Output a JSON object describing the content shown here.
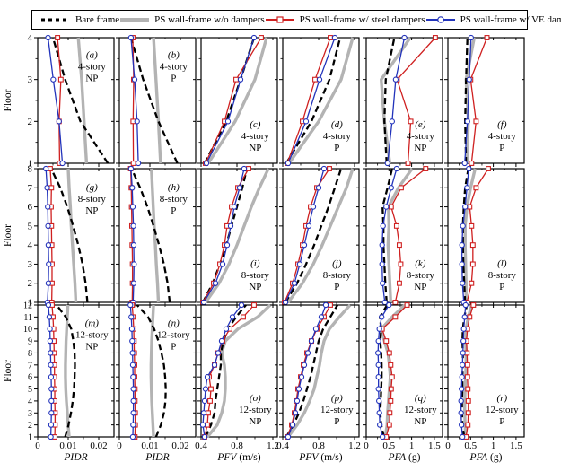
{
  "legend": {
    "items": [
      {
        "label": "Bare frame",
        "style": "bare"
      },
      {
        "label": "PS wall-frame w/o dampers",
        "style": "wo"
      },
      {
        "label": "PS wall-frame w/ steel dampers",
        "style": "steel"
      },
      {
        "label": "PS wall-frame w/ VE dampers",
        "style": "ve"
      }
    ]
  },
  "series_styles": {
    "bare": {
      "color": "#000000",
      "width": 2.3,
      "dash": "7,4"
    },
    "wo": {
      "color": "#b3b3b3",
      "width": 3.4
    },
    "steel": {
      "color": "#cf2020",
      "width": 1.3,
      "marker": "square"
    },
    "ve": {
      "color": "#2233bb",
      "width": 1.3,
      "marker": "circle"
    }
  },
  "y_axis": {
    "label": "Floor",
    "rows": [
      {
        "floors": 4,
        "tick_labels": [
          "1",
          "2",
          "3",
          "4"
        ]
      },
      {
        "floors": 8,
        "tick_labels": [
          "1",
          "2",
          "3",
          "4",
          "5",
          "6",
          "7",
          "8"
        ]
      },
      {
        "floors": 12,
        "tick_labels": [
          "1",
          "2",
          "3",
          "4",
          "5",
          "6",
          "7",
          "8",
          "9",
          "10",
          "11",
          "12"
        ]
      }
    ]
  },
  "chart_data": {
    "type": "line",
    "axes": {
      "PIDR": {
        "min": 0,
        "max": 0.025,
        "ticks": [
          0,
          0.01,
          0.02
        ],
        "minors": [
          0.005,
          0.015
        ],
        "tick_labels": [
          "0",
          "0.01",
          "0.02"
        ],
        "title_em": "PIDR",
        "title_rest": ""
      },
      "PFV": {
        "min": 0.4,
        "max": 1.25,
        "ticks": [
          0.4,
          0.8,
          1.2
        ],
        "minors": [
          0.6,
          1.0
        ],
        "tick_labels": [
          "0.4",
          "0.8",
          "1.2"
        ],
        "title_em": "PFV",
        "title_rest": " (m/s)"
      },
      "PFA": {
        "min": 0,
        "max": 1.68,
        "ticks": [
          0,
          0.5,
          1,
          1.5
        ],
        "minors": [
          0.25,
          0.75,
          1.25
        ],
        "tick_labels": [
          "0",
          "0.5",
          "1",
          "1.5"
        ],
        "title_em": "PFA",
        "title_rest": " (g)"
      }
    },
    "panels": [
      {
        "id": "a",
        "note": [
          "(a)",
          "4-story",
          "NP"
        ],
        "row": 0,
        "col": 0,
        "floors": 4,
        "x": "PIDR",
        "pos": "top",
        "series": {
          "bare": [
            0.023,
            0.014,
            0.009,
            0.005
          ],
          "wo": [
            0.016,
            0.0152,
            0.0144,
            0.0133
          ],
          "steel": [
            0.0072,
            0.007,
            0.0076,
            0.0065
          ],
          "ve": [
            0.0081,
            0.007,
            0.0051,
            0.0034
          ]
        }
      },
      {
        "id": "b",
        "note": [
          "(b)",
          "4-story",
          "P"
        ],
        "row": 0,
        "col": 1,
        "floors": 4,
        "x": "PIDR",
        "pos": "top",
        "series": {
          "bare": [
            0.019,
            0.0128,
            0.0078,
            0.0038
          ],
          "wo": [
            0.0135,
            0.0128,
            0.012,
            0.0112
          ],
          "steel": [
            0.0046,
            0.0045,
            0.0047,
            0.0044
          ],
          "ve": [
            0.0062,
            0.0058,
            0.005,
            0.0038
          ]
        }
      },
      {
        "id": "c",
        "note": [
          "(c)",
          "4-story",
          "NP"
        ],
        "row": 0,
        "col": 2,
        "floors": 4,
        "x": "PFV",
        "pos": "bottom",
        "series": {
          "bare": [
            0.44,
            0.68,
            0.84,
            0.99
          ],
          "wo": [
            0.48,
            0.78,
            1.0,
            1.13
          ],
          "steel": [
            0.45,
            0.66,
            0.79,
            1.07
          ],
          "ve": [
            0.46,
            0.7,
            0.84,
            0.99
          ]
        }
      },
      {
        "id": "d",
        "note": [
          "(d)",
          "4-story",
          "P"
        ],
        "row": 0,
        "col": 3,
        "floors": 4,
        "x": "PFV",
        "pos": "bottom",
        "series": {
          "bare": [
            0.44,
            0.72,
            0.92,
            1.04
          ],
          "wo": [
            0.47,
            0.8,
            1.05,
            1.18
          ],
          "steel": [
            0.45,
            0.62,
            0.76,
            0.93
          ],
          "ve": [
            0.46,
            0.66,
            0.81,
            0.98
          ]
        }
      },
      {
        "id": "e",
        "note": [
          "(e)",
          "4-story",
          "NP"
        ],
        "row": 0,
        "col": 4,
        "floors": 4,
        "x": "PFA",
        "pos": "bottom",
        "series": {
          "bare": [
            0.45,
            0.4,
            0.43,
            0.62
          ],
          "wo": [
            0.52,
            0.4,
            0.33,
            0.97
          ],
          "steel": [
            0.92,
            0.98,
            0.68,
            1.52
          ],
          "ve": [
            0.47,
            0.57,
            0.65,
            0.84
          ]
        }
      },
      {
        "id": "f",
        "note": [
          "(f)",
          "4-story",
          "P"
        ],
        "row": 0,
        "col": 5,
        "floors": 4,
        "x": "PFA",
        "pos": "bottom",
        "series": {
          "bare": [
            0.4,
            0.38,
            0.4,
            0.43
          ],
          "wo": [
            0.42,
            0.45,
            0.4,
            0.58
          ],
          "steel": [
            0.52,
            0.62,
            0.5,
            0.86
          ],
          "ve": [
            0.37,
            0.43,
            0.47,
            0.51
          ]
        }
      },
      {
        "id": "g",
        "note": [
          "(g)",
          "8-story",
          "NP"
        ],
        "row": 1,
        "col": 0,
        "floors": 8,
        "x": "PIDR",
        "pos": "top",
        "series": {
          "bare": [
            0.0163,
            0.0157,
            0.0147,
            0.0133,
            0.0116,
            0.0097,
            0.0074,
            0.0044
          ],
          "wo": [
            0.0125,
            0.0122,
            0.0118,
            0.0114,
            0.011,
            0.0107,
            0.0103,
            0.01
          ],
          "steel": [
            0.0046,
            0.0047,
            0.0047,
            0.0046,
            0.0045,
            0.0044,
            0.0045,
            0.0041
          ],
          "ve": [
            0.0032,
            0.0035,
            0.0036,
            0.0035,
            0.0034,
            0.0033,
            0.0031,
            0.0027
          ]
        }
      },
      {
        "id": "h",
        "note": [
          "(h)",
          "8-story",
          "P"
        ],
        "row": 1,
        "col": 1,
        "floors": 8,
        "x": "PIDR",
        "pos": "top",
        "series": {
          "bare": [
            0.0165,
            0.0158,
            0.0146,
            0.013,
            0.0112,
            0.0092,
            0.0068,
            0.004
          ],
          "wo": [
            0.0128,
            0.0125,
            0.0121,
            0.0118,
            0.0114,
            0.0111,
            0.0108,
            0.0105
          ],
          "steel": [
            0.0042,
            0.0043,
            0.0043,
            0.0042,
            0.0041,
            0.004,
            0.0039,
            0.0037
          ],
          "ve": [
            0.0045,
            0.0047,
            0.0048,
            0.0047,
            0.0046,
            0.0044,
            0.0042,
            0.0038
          ]
        }
      },
      {
        "id": "i",
        "note": [
          "(i)",
          "8-story",
          "NP"
        ],
        "row": 1,
        "col": 2,
        "floors": 8,
        "x": "PFV",
        "pos": "bottom",
        "series": {
          "bare": [
            0.42,
            0.53,
            0.61,
            0.68,
            0.74,
            0.8,
            0.86,
            0.91
          ],
          "wo": [
            0.45,
            0.6,
            0.71,
            0.8,
            0.88,
            0.96,
            1.05,
            1.15
          ],
          "steel": [
            0.42,
            0.54,
            0.61,
            0.66,
            0.69,
            0.74,
            0.81,
            0.93
          ],
          "ve": [
            0.43,
            0.56,
            0.64,
            0.69,
            0.73,
            0.77,
            0.83,
            0.88
          ]
        }
      },
      {
        "id": "j",
        "note": [
          "(j)",
          "8-story",
          "P"
        ],
        "row": 1,
        "col": 3,
        "floors": 8,
        "x": "PFV",
        "pos": "bottom",
        "series": {
          "bare": [
            0.43,
            0.56,
            0.66,
            0.75,
            0.83,
            0.91,
            0.98,
            1.05
          ],
          "wo": [
            0.46,
            0.62,
            0.74,
            0.84,
            0.93,
            1.02,
            1.11,
            1.18
          ],
          "steel": [
            0.42,
            0.51,
            0.57,
            0.62,
            0.66,
            0.71,
            0.78,
            0.92
          ],
          "ve": [
            0.43,
            0.53,
            0.59,
            0.64,
            0.69,
            0.74,
            0.8,
            0.86
          ]
        }
      },
      {
        "id": "k",
        "note": [
          "(k)",
          "8-story",
          "NP"
        ],
        "row": 1,
        "col": 4,
        "floors": 8,
        "x": "PFA",
        "pos": "bottom",
        "series": {
          "bare": [
            0.45,
            0.42,
            0.4,
            0.38,
            0.38,
            0.36,
            0.47,
            0.57
          ],
          "wo": [
            0.54,
            0.52,
            0.5,
            0.48,
            0.5,
            0.49,
            0.71,
            1.01
          ],
          "steel": [
            0.64,
            0.73,
            0.76,
            0.73,
            0.67,
            0.55,
            0.77,
            1.31
          ],
          "ve": [
            0.41,
            0.36,
            0.35,
            0.35,
            0.37,
            0.44,
            0.55,
            0.67
          ]
        }
      },
      {
        "id": "l",
        "note": [
          "(l)",
          "8-story",
          "P"
        ],
        "row": 1,
        "col": 5,
        "floors": 8,
        "x": "PFA",
        "pos": "bottom",
        "series": {
          "bare": [
            0.38,
            0.36,
            0.34,
            0.33,
            0.33,
            0.35,
            0.38,
            0.45
          ],
          "wo": [
            0.4,
            0.4,
            0.39,
            0.38,
            0.38,
            0.42,
            0.5,
            0.6
          ],
          "steel": [
            0.42,
            0.52,
            0.55,
            0.55,
            0.52,
            0.48,
            0.62,
            0.89
          ],
          "ve": [
            0.35,
            0.32,
            0.31,
            0.31,
            0.33,
            0.38,
            0.42,
            0.46
          ]
        }
      },
      {
        "id": "m",
        "note": [
          "(m)",
          "12-story",
          "NP"
        ],
        "row": 2,
        "col": 0,
        "floors": 12,
        "x": "PIDR",
        "pos": "top",
        "series": {
          "bare": [
            0.009,
            0.0101,
            0.0109,
            0.0115,
            0.0119,
            0.0121,
            0.0122,
            0.0121,
            0.0117,
            0.011,
            0.0092,
            0.0062
          ],
          "wo": [
            0.0103,
            0.01,
            0.0097,
            0.0094,
            0.0092,
            0.0091,
            0.0091,
            0.0092,
            0.0093,
            0.0095,
            0.0097,
            0.0099
          ],
          "steel": [
            0.0056,
            0.0057,
            0.0057,
            0.0056,
            0.0056,
            0.0055,
            0.0055,
            0.0054,
            0.0053,
            0.0052,
            0.005,
            0.0047
          ],
          "ve": [
            0.0043,
            0.0044,
            0.0045,
            0.0045,
            0.0045,
            0.0044,
            0.0043,
            0.0042,
            0.0041,
            0.004,
            0.0038,
            0.0035
          ]
        }
      },
      {
        "id": "n",
        "note": [
          "(n)",
          "12-story",
          "P"
        ],
        "row": 2,
        "col": 1,
        "floors": 12,
        "x": "PIDR",
        "pos": "top",
        "series": {
          "bare": [
            0.012,
            0.0136,
            0.0146,
            0.0151,
            0.0152,
            0.015,
            0.0146,
            0.0138,
            0.0128,
            0.0114,
            0.0094,
            0.0058
          ],
          "wo": [
            0.0112,
            0.011,
            0.0108,
            0.0106,
            0.0105,
            0.0104,
            0.0104,
            0.0105,
            0.0106,
            0.0108,
            0.011,
            0.0112
          ],
          "steel": [
            0.0051,
            0.0052,
            0.0052,
            0.0051,
            0.0051,
            0.005,
            0.005,
            0.0049,
            0.0048,
            0.0047,
            0.0045,
            0.0042
          ],
          "ve": [
            0.0044,
            0.0045,
            0.0046,
            0.0046,
            0.0046,
            0.0045,
            0.0044,
            0.0043,
            0.0042,
            0.0041,
            0.0039,
            0.0036
          ]
        }
      },
      {
        "id": "o",
        "note": [
          "(o)",
          "12-story",
          "NP"
        ],
        "row": 2,
        "col": 2,
        "floors": 12,
        "x": "PFV",
        "pos": "bottom",
        "series": {
          "bare": [
            0.45,
            0.51,
            0.55,
            0.56,
            0.58,
            0.6,
            0.62,
            0.62,
            0.65,
            0.7,
            0.79,
            0.9
          ],
          "wo": [
            0.47,
            0.58,
            0.63,
            0.66,
            0.67,
            0.67,
            0.66,
            0.63,
            0.67,
            0.81,
            1.03,
            1.17
          ],
          "steel": [
            0.44,
            0.47,
            0.48,
            0.5,
            0.51,
            0.49,
            0.55,
            0.59,
            0.64,
            0.72,
            0.87,
            0.99
          ],
          "ve": [
            0.44,
            0.42,
            0.43,
            0.44,
            0.45,
            0.47,
            0.55,
            0.59,
            0.63,
            0.68,
            0.75,
            0.85
          ]
        }
      },
      {
        "id": "p",
        "note": [
          "(p)",
          "12-story",
          "P"
        ],
        "row": 2,
        "col": 3,
        "floors": 12,
        "x": "PFV",
        "pos": "bottom",
        "series": {
          "bare": [
            0.44,
            0.52,
            0.58,
            0.63,
            0.67,
            0.71,
            0.74,
            0.77,
            0.8,
            0.85,
            0.93,
            1.01
          ],
          "wo": [
            0.46,
            0.56,
            0.64,
            0.7,
            0.75,
            0.78,
            0.81,
            0.83,
            0.86,
            0.92,
            1.03,
            1.15
          ],
          "steel": [
            0.45,
            0.5,
            0.53,
            0.55,
            0.57,
            0.6,
            0.63,
            0.67,
            0.72,
            0.78,
            0.86,
            0.93
          ],
          "ve": [
            0.46,
            0.51,
            0.54,
            0.56,
            0.58,
            0.61,
            0.64,
            0.68,
            0.72,
            0.77,
            0.83,
            0.88
          ]
        }
      },
      {
        "id": "q",
        "note": [
          "(q)",
          "12-story",
          "NP"
        ],
        "row": 2,
        "col": 4,
        "floors": 12,
        "x": "PFA",
        "pos": "bottom",
        "series": {
          "bare": [
            0.39,
            0.33,
            0.31,
            0.32,
            0.33,
            0.34,
            0.34,
            0.33,
            0.31,
            0.33,
            0.3,
            0.46
          ],
          "wo": [
            0.42,
            0.46,
            0.47,
            0.49,
            0.51,
            0.53,
            0.51,
            0.48,
            0.4,
            0.33,
            0.57,
            0.85
          ],
          "steel": [
            0.44,
            0.51,
            0.52,
            0.54,
            0.55,
            0.57,
            0.54,
            0.51,
            0.44,
            0.35,
            0.64,
            0.9
          ],
          "ve": [
            0.36,
            0.3,
            0.29,
            0.28,
            0.27,
            0.27,
            0.27,
            0.26,
            0.27,
            0.29,
            0.34,
            0.5
          ]
        }
      },
      {
        "id": "r",
        "note": [
          "(r)",
          "12-story",
          "P"
        ],
        "row": 2,
        "col": 5,
        "floors": 12,
        "x": "PFA",
        "pos": "bottom",
        "series": {
          "bare": [
            0.36,
            0.32,
            0.31,
            0.31,
            0.32,
            0.32,
            0.33,
            0.33,
            0.32,
            0.33,
            0.36,
            0.42
          ],
          "wo": [
            0.39,
            0.38,
            0.37,
            0.37,
            0.38,
            0.39,
            0.4,
            0.4,
            0.39,
            0.4,
            0.45,
            0.52
          ],
          "steel": [
            0.4,
            0.44,
            0.45,
            0.45,
            0.44,
            0.43,
            0.43,
            0.42,
            0.41,
            0.43,
            0.48,
            0.56
          ],
          "ve": [
            0.32,
            0.3,
            0.29,
            0.29,
            0.3,
            0.31,
            0.32,
            0.33,
            0.34,
            0.35,
            0.37,
            0.39
          ]
        }
      }
    ]
  }
}
